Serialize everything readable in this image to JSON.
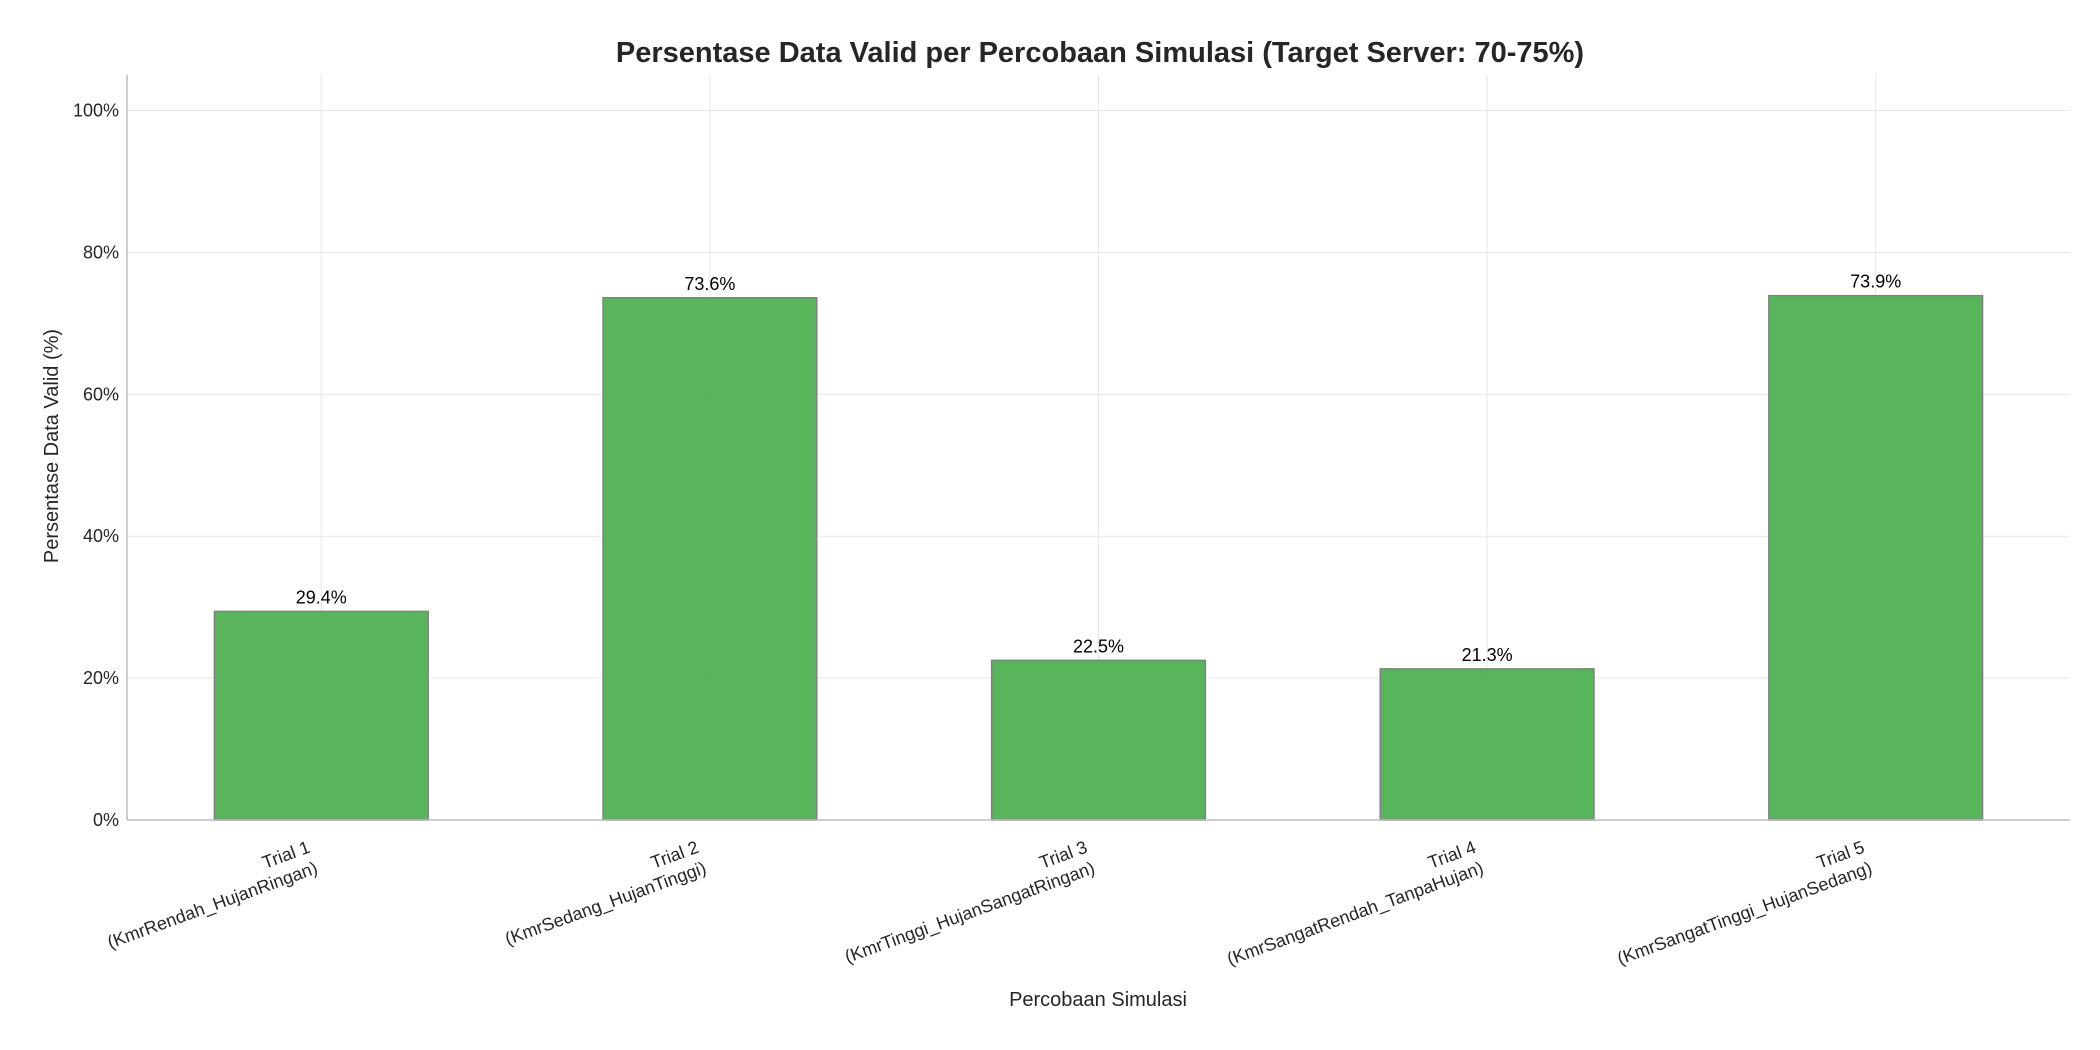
{
  "chart_data": {
    "type": "bar",
    "title": "Persentase Data Valid per Percobaan Simulasi (Target Server: 70-75%)",
    "xlabel": "Percobaan Simulasi",
    "ylabel": "Persentase Data Valid (%)",
    "categories": [
      [
        "Trial 1",
        "(KmrRendah_HujanRingan)"
      ],
      [
        "Trial 2",
        "(KmrSedang_HujanTinggi)"
      ],
      [
        "Trial 3",
        "(KmrTinggi_HujanSangatRingan)"
      ],
      [
        "Trial 4",
        "(KmrSangatRendah_TanpaHujan)"
      ],
      [
        "Trial 5",
        "(KmrSangatTinggi_HujanSedang)"
      ]
    ],
    "values": [
      29.4,
      73.6,
      22.5,
      21.3,
      73.9
    ],
    "value_labels": [
      "29.4%",
      "73.6%",
      "22.5%",
      "21.3%",
      "73.9%"
    ],
    "ylim": [
      0,
      105
    ],
    "yticks": [
      0,
      20,
      40,
      60,
      80,
      100
    ],
    "ytick_labels": [
      "0%",
      "20%",
      "40%",
      "60%",
      "80%",
      "100%"
    ],
    "grid": true,
    "colors": {
      "bar_fill": "#4caf50",
      "bar_edge": "#808080",
      "grid": "#e6e6e6",
      "axis": "#bdbdbd"
    }
  }
}
